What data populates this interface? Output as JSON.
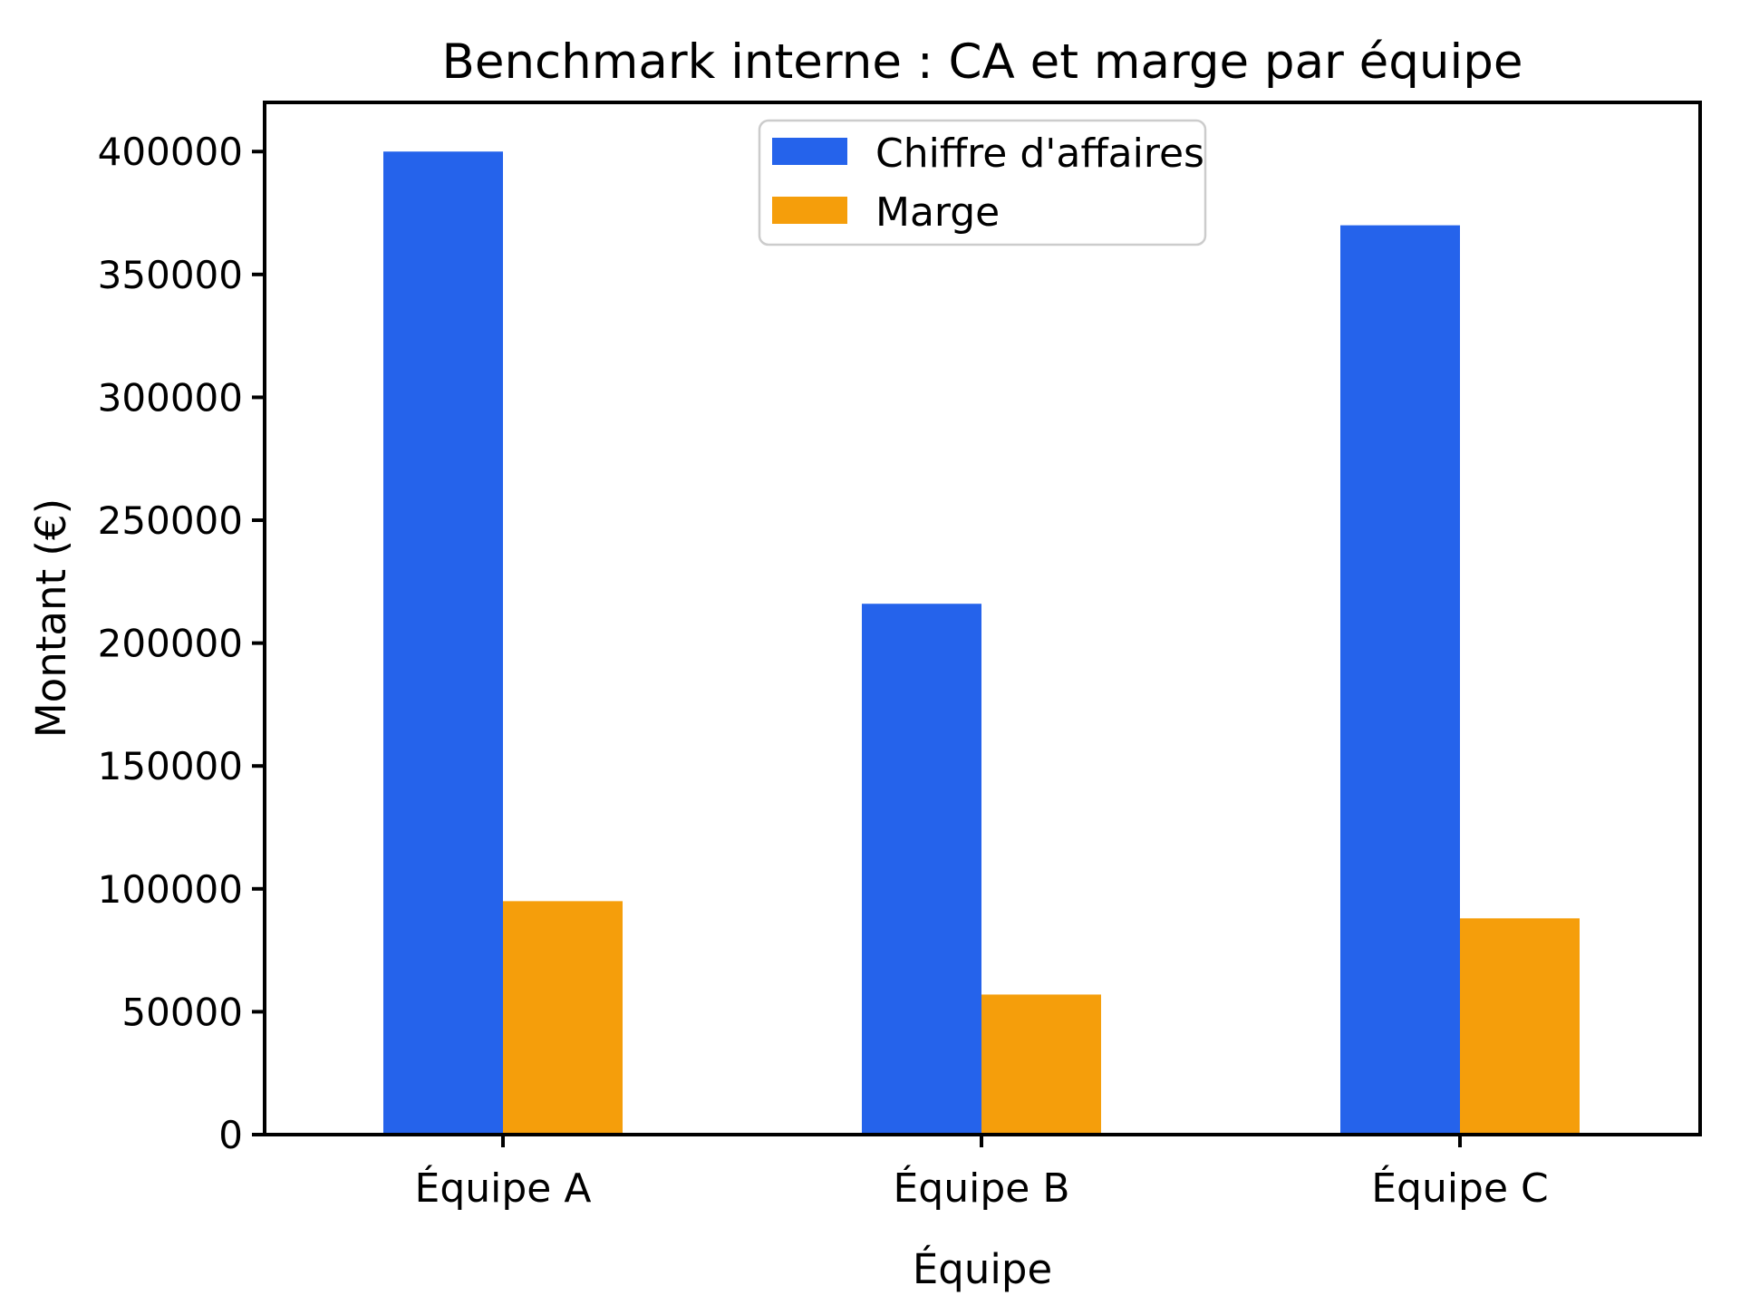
{
  "chart_data": {
    "type": "bar",
    "title": "Benchmark interne : CA et marge par équipe",
    "xlabel": "Équipe",
    "ylabel": "Montant (€)",
    "categories": [
      "Équipe A",
      "Équipe B",
      "Équipe C"
    ],
    "series": [
      {
        "name": "Chiffre d'affaires",
        "color": "#2563eb",
        "values": [
          400000,
          216000,
          370000
        ]
      },
      {
        "name": "Marge",
        "color": "#f59e0b",
        "values": [
          95000,
          57000,
          88000
        ]
      }
    ],
    "ylim": [
      0,
      420000
    ],
    "yticks": [
      0,
      50000,
      100000,
      150000,
      200000,
      250000,
      300000,
      350000,
      400000
    ],
    "grid": false,
    "legend_position": "upper center",
    "colors": {
      "axis": "#000000",
      "background": "#ffffff",
      "legend_border": "#cccccc"
    }
  }
}
